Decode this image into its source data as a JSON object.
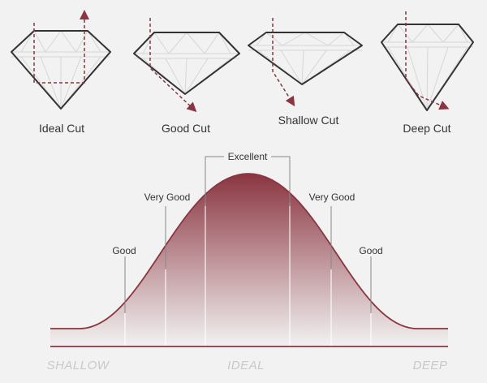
{
  "colors": {
    "accent": "#8a3540",
    "outline": "#333333",
    "facet": "#d6d6d6",
    "background": "#f2f2f2",
    "axis_text": "#c9c9c9"
  },
  "diamonds": [
    {
      "label": "Ideal Cut",
      "light_path": "ideal"
    },
    {
      "label": "Good Cut",
      "light_path": "good"
    },
    {
      "label": "Shallow Cut",
      "light_path": "shallow"
    },
    {
      "label": "Deep Cut",
      "light_path": "deep"
    }
  ],
  "curve": {
    "grade_labels": {
      "excellent": "Excellent",
      "very_good_left": "Very Good",
      "very_good_right": "Very Good",
      "good_left": "Good",
      "good_right": "Good"
    },
    "axis": {
      "left": "SHALLOW",
      "center": "IDEAL",
      "right": "DEEP"
    }
  }
}
